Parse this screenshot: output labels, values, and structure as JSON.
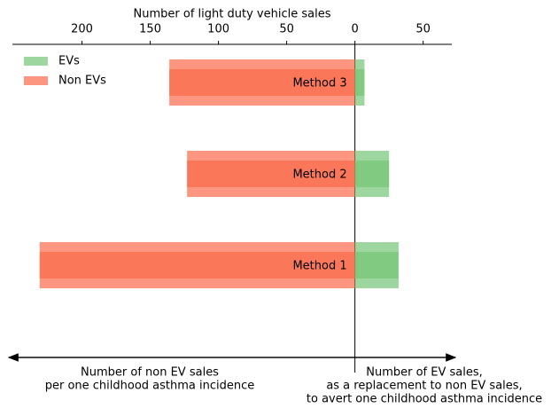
{
  "chart_data": {
    "type": "diverging-bar",
    "xlabel": "Number of light duty vehicle sales",
    "categories": [
      "Method 1",
      "Method 2",
      "Method 3"
    ],
    "series": [
      {
        "name": "EVs",
        "color": "#74c476",
        "values": [
          32,
          25,
          7
        ]
      },
      {
        "name": "Non EVs",
        "color": "#fb6a4a",
        "values": [
          -231,
          -123,
          -136
        ]
      }
    ],
    "xlim": [
      -251,
      71
    ],
    "xticks": [
      {
        "value": -200,
        "label": "200"
      },
      {
        "value": -150,
        "label": "150"
      },
      {
        "value": -100,
        "label": "100"
      },
      {
        "value": -50,
        "label": "50"
      },
      0,
      50
    ],
    "legend": "upper left",
    "annotations": [
      {
        "lines": [
          "Number of non EV sales",
          "per one childhood asthma incidence"
        ]
      },
      {
        "lines": [
          "Number of EV sales,",
          "as a replacement to non EV sales,",
          "to avert one childhood asthma incidence"
        ]
      }
    ]
  }
}
